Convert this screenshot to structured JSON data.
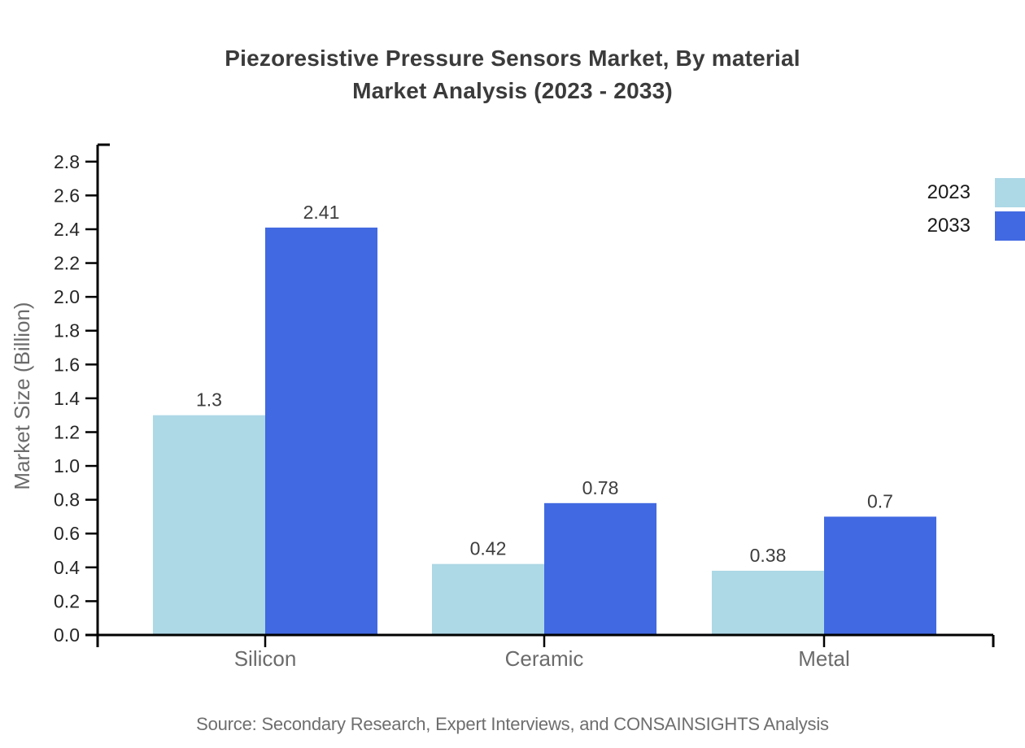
{
  "title": {
    "line1": "Piezoresistive Pressure Sensors Market, By material",
    "line2": "Market Analysis (2023 - 2033)"
  },
  "source": "Source: Secondary Research, Expert Interviews, and CONSAINSIGHTS Analysis",
  "legend": {
    "items": [
      {
        "label": "2023",
        "color": "#add8e6"
      },
      {
        "label": "2033",
        "color": "#4169e1"
      }
    ]
  },
  "chart_data": {
    "type": "bar",
    "title": "Piezoresistive Pressure Sensors Market, By material Market Analysis (2023 - 2033)",
    "categories": [
      "Silicon",
      "Ceramic",
      "Metal"
    ],
    "series": [
      {
        "name": "2023",
        "color": "#add8e6",
        "values": [
          1.3,
          0.42,
          0.38
        ]
      },
      {
        "name": "2033",
        "color": "#4169e1",
        "values": [
          2.41,
          0.78,
          0.7
        ]
      }
    ],
    "value_labels": [
      [
        "1.3",
        "0.42",
        "0.38"
      ],
      [
        "2.41",
        "0.78",
        "0.7"
      ]
    ],
    "xlabel": "",
    "ylabel": "Market Size (Billion)",
    "ylim": [
      0,
      2.9
    ],
    "ytick_step": 0.2,
    "ytick_max": 2.8,
    "grid": false,
    "legend_position": "top-right"
  }
}
